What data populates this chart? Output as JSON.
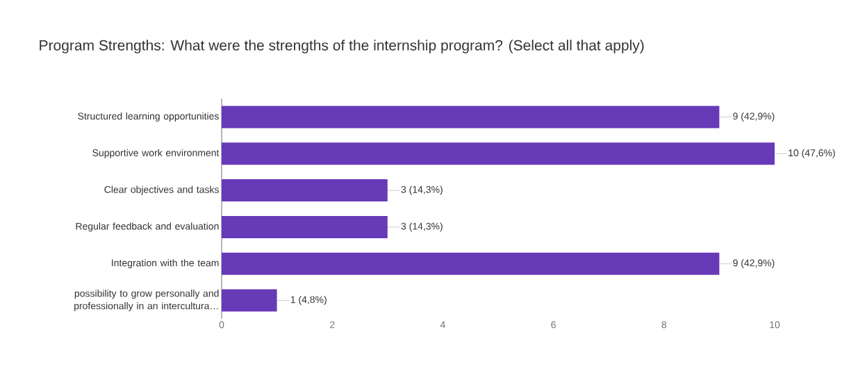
{
  "chart_data": {
    "type": "bar",
    "orientation": "horizontal",
    "title": "Program Strengths: What were the strengths of the internship program? (Select all that apply)",
    "categories": [
      "Structured learning opportunities",
      "Supportive work environment",
      "Clear objectives and tasks",
      "Regular feedback and evaluation",
      "Integration with the team",
      "possibility to grow personally and professionally in an intercultura…"
    ],
    "values": [
      9,
      10,
      3,
      3,
      9,
      1
    ],
    "value_labels": [
      "9 (42,9%)",
      "10 (47,6%)",
      "3 (14,3%)",
      "3 (14,3%)",
      "9 (42,9%)",
      "1 (4,8%)"
    ],
    "color": "#673ab7",
    "xlim": [
      0,
      10
    ],
    "xticks": [
      0,
      2,
      4,
      6,
      8,
      10
    ]
  }
}
